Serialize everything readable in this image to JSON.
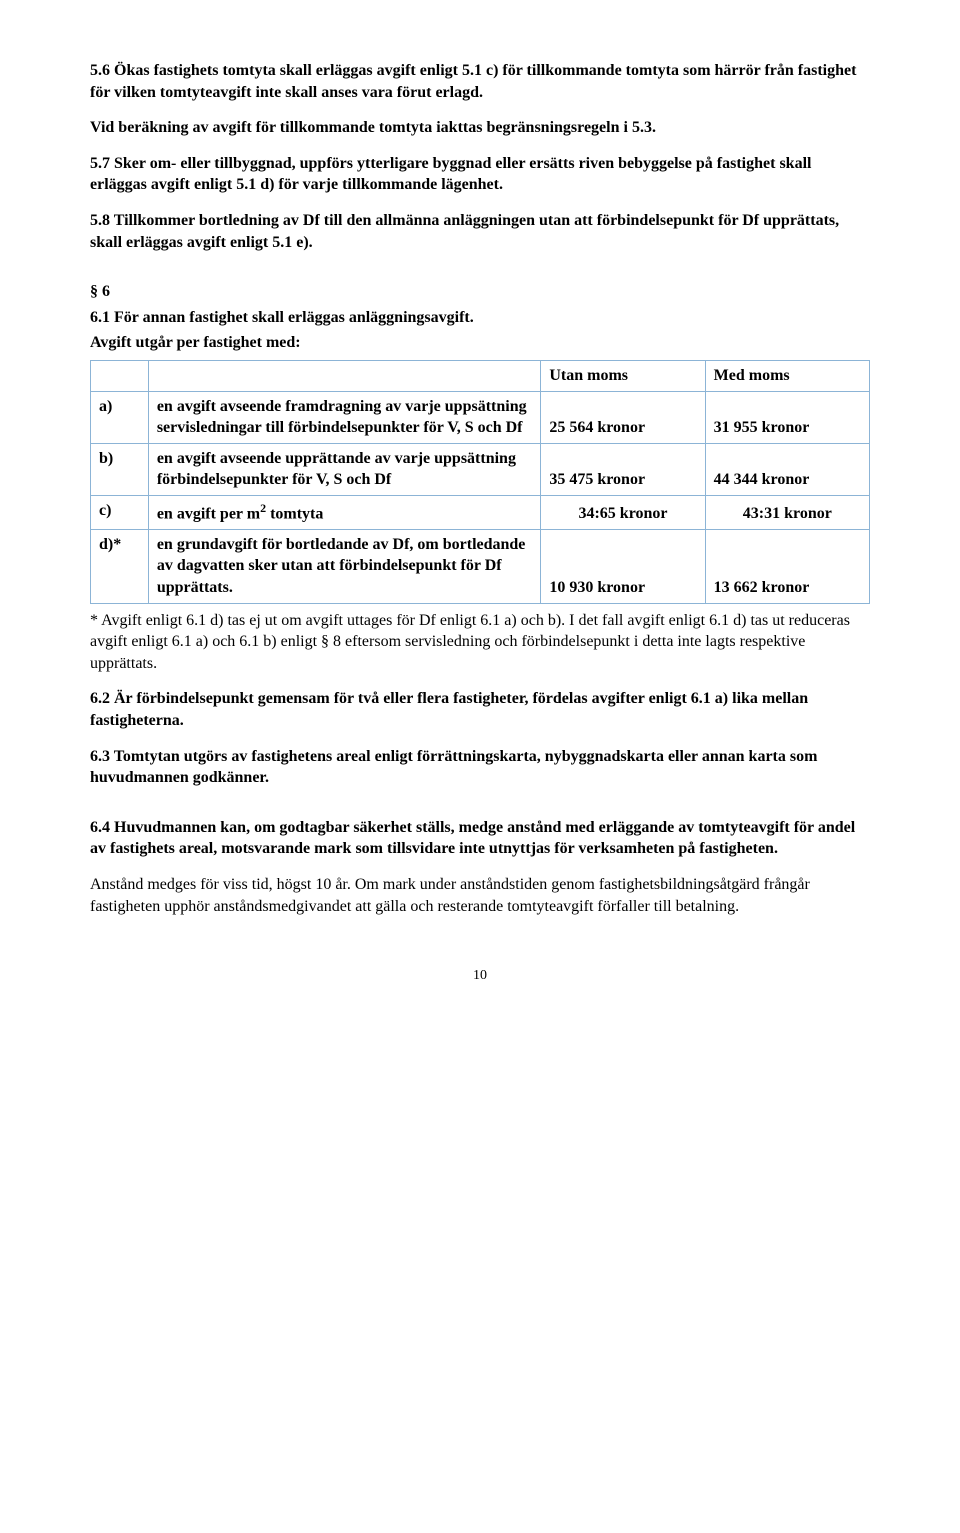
{
  "p5_6": "5.6   Ökas fastighets tomtyta skall erläggas avgift enligt 5.1 c) för tillkommande tomtyta som härrör från fastighet för vilken tomtyteavgift inte skall anses vara förut erlagd.",
  "p5_6b": "Vid beräkning av avgift för tillkommande tomtyta iakttas begränsningsregeln i 5.3.",
  "p5_7": "5.7   Sker om- eller tillbyggnad, uppförs ytterligare byggnad eller ersätts riven bebyggelse på fastighet skall erläggas avgift enligt 5.1 d) för varje tillkommande lägenhet.",
  "p5_8": "5.8   Tillkommer bortledning av Df till den allmänna anläggningen utan att förbindelsepunkt för Df upprättats, skall erläggas avgift enligt 5.1 e).",
  "s6": "§ 6",
  "p6_1": "6.1   För annan fastighet skall erläggas anläggningsavgift.",
  "p6_1b": "Avgift utgår per fastighet med:",
  "table": {
    "header": {
      "utan": "Utan moms",
      "med": "Med moms"
    },
    "rows": [
      {
        "letter": "a)",
        "desc": "en avgift avseende framdragning av varje uppsättning servisledningar till förbindelsepunkter för V, S och Df",
        "utan": "25 564 kronor",
        "med": "31 955 kronor"
      },
      {
        "letter": "b)",
        "desc": "en avgift avseende upprättande av varje uppsättning förbindelsepunkter för V, S och Df",
        "utan": "35 475 kronor",
        "med": "44 344 kronor"
      },
      {
        "letter": "c)",
        "desc_pre": "en avgift per m",
        "desc_post": " tomtyta",
        "utan": "34:65 kronor",
        "med": "43:31 kronor"
      },
      {
        "letter": "d)*",
        "desc": "en grundavgift för bortledande av Df, om bortledande av dagvatten sker utan att förbindelsepunkt för Df upprättats.",
        "utan": "10 930 kronor",
        "med": "13 662 kronor"
      }
    ]
  },
  "note": "* Avgift enligt 6.1 d) tas ej ut om avgift uttages för Df enligt 6.1 a) och b). I det fall avgift enligt 6.1 d) tas ut reduceras avgift enligt 6.1 a) och 6.1 b) enligt § 8 eftersom servisledning och förbindelsepunkt i detta inte lagts respektive upprättats.",
  "p6_2": "6.2   Är förbindelsepunkt gemensam för två eller flera fastigheter, fördelas avgifter enligt 6.1 a) lika mellan fastigheterna.",
  "p6_3": "6.3   Tomtytan utgörs av fastighetens areal enligt förrättningskarta, nybyggnadskarta eller annan karta som huvudmannen godkänner.",
  "p6_4": "6.4   Huvudmannen kan, om godtagbar säkerhet ställs, medge anstånd med erläggande av tomtyteavgift för andel av fastighets areal, motsvarande mark som tillsvidare inte utnyttjas för verksamheten på fastigheten.",
  "p6_4b": "Anstånd medges för viss tid, högst 10 år. Om mark under anståndstiden genom fastighetsbildningsåtgärd frångår fastigheten upphör anståndsmedgivandet att gälla och resterande tomtyteavgift förfaller till betalning.",
  "page": "10"
}
